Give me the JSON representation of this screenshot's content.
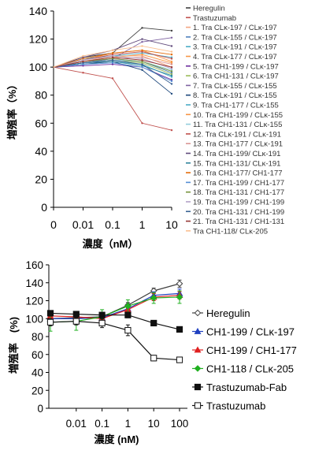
{
  "chart_data": [
    {
      "type": "line",
      "x_ticks": [
        "0",
        "0.01",
        "0.1",
        "1",
        "10"
      ],
      "x": [
        0,
        0.01,
        0.1,
        1,
        10
      ],
      "xlabel": "濃度（nM）",
      "ylabel": "増殖率（%）",
      "ylim": [
        0,
        140
      ],
      "y_ticks": [
        0,
        20,
        40,
        60,
        80,
        100,
        120,
        140
      ],
      "grid": false,
      "legend_position": "right",
      "series": [
        {
          "name": "Heregulin",
          "color": "#404040",
          "values": [
            100,
            107,
            110,
            128,
            126
          ]
        },
        {
          "name": "Trastuzumab",
          "color": "#c0504d",
          "values": [
            100,
            96,
            92,
            60,
            55
          ]
        },
        {
          "name": "1. Tra CLκ-197 / CLκ-197",
          "color": "#f4a582",
          "values": [
            100,
            104,
            108,
            108,
            100
          ]
        },
        {
          "name": "2. Tra CLκ-155 / CLκ-197",
          "color": "#4f81bd",
          "values": [
            100,
            103,
            106,
            104,
            96
          ]
        },
        {
          "name": "3. Tra CLκ-191 / CLκ-197",
          "color": "#4bacc6",
          "values": [
            100,
            102,
            104,
            102,
            93
          ]
        },
        {
          "name": "4. Tra CLκ-177 / CLκ-197",
          "color": "#f79646",
          "values": [
            100,
            105,
            110,
            112,
            104
          ]
        },
        {
          "name": "5. Tra CH1-199 / CLκ-197",
          "color": "#7030a0",
          "values": [
            100,
            101,
            102,
            100,
            91
          ]
        },
        {
          "name": "6. Tra CH1-131 / CLκ-197",
          "color": "#9bbb59",
          "values": [
            100,
            103,
            105,
            103,
            95
          ]
        },
        {
          "name": "7. Tra CLκ-155 / CLκ-155",
          "color": "#8064a2",
          "values": [
            100,
            104,
            106,
            118,
            121
          ]
        },
        {
          "name": "8. Tra CLκ-191 / CLκ-155",
          "color": "#1f497d",
          "values": [
            100,
            102,
            104,
            98,
            81
          ]
        },
        {
          "name": "9. Tra CH1-177 / CLκ-155",
          "color": "#4bacc6",
          "values": [
            100,
            106,
            108,
            110,
            107
          ]
        },
        {
          "name": "10. Tra CH1-199 / CLκ-155",
          "color": "#f79646",
          "values": [
            100,
            104,
            107,
            109,
            103
          ]
        },
        {
          "name": "11. Tra CH1-131 / CLκ-155",
          "color": "#92cddc",
          "values": [
            100,
            103,
            105,
            104,
            98
          ]
        },
        {
          "name": "12. Tra CLκ-191 / CLκ-191",
          "color": "#c0504d",
          "values": [
            100,
            105,
            109,
            111,
            106
          ]
        },
        {
          "name": "13. Tra CH1-177 / CLκ-191",
          "color": "#d99694",
          "values": [
            100,
            104,
            106,
            107,
            102
          ]
        },
        {
          "name": "14. Tra CH1-199/ CLκ-191",
          "color": "#604a7b",
          "values": [
            100,
            107,
            112,
            120,
            115
          ]
        },
        {
          "name": "15. Tra CH1-131/ CLκ-191",
          "color": "#31859c",
          "values": [
            100,
            103,
            104,
            101,
            94
          ]
        },
        {
          "name": "16. Tra CH1-177/ CH1-177",
          "color": "#e46c0a",
          "values": [
            100,
            106,
            110,
            112,
            109
          ]
        },
        {
          "name": "17. Tra CH1-199 / CH1-177",
          "color": "#558ed5",
          "values": [
            100,
            102,
            103,
            100,
            90
          ]
        },
        {
          "name": "18. Tra CH1-131 / CH1-177",
          "color": "#77933c",
          "values": [
            100,
            104,
            106,
            104,
            97
          ]
        },
        {
          "name": "19. Tra CH1-199 / CH1-199",
          "color": "#b3a2c7",
          "values": [
            100,
            105,
            108,
            106,
            99
          ]
        },
        {
          "name": "20. Tra CH1-131 / CH1-199",
          "color": "#376092",
          "values": [
            100,
            103,
            105,
            102,
            88
          ]
        },
        {
          "name": "21. Tra CH1-131 / CH1-131",
          "color": "#953735",
          "values": [
            100,
            104,
            107,
            105,
            100
          ]
        },
        {
          "name": "Tra CH1-118/ CLκ-205",
          "color": "#fac090",
          "values": [
            100,
            108,
            112,
            115,
            111
          ]
        }
      ]
    },
    {
      "type": "line",
      "x_ticks": [
        "0.01",
        "0.1",
        "1",
        "10",
        "100"
      ],
      "x": [
        0.001,
        0.01,
        0.1,
        1,
        10,
        100
      ],
      "xlabel": "濃度 (nM)",
      "ylabel": "増殖率　(%)",
      "ylim": [
        0,
        160
      ],
      "y_ticks": [
        0,
        20,
        40,
        60,
        80,
        100,
        120,
        140,
        160
      ],
      "x_scale": "log",
      "grid": false,
      "legend_position": "right",
      "series": [
        {
          "name": "Heregulin",
          "color": "#404040",
          "marker": "diamond-open",
          "values": [
            100,
            101,
            102,
            115,
            131,
            139
          ],
          "errors": [
            3,
            3,
            3,
            3,
            3,
            4
          ]
        },
        {
          "name": "CH1-199 / CLκ-197",
          "color": "#2040c0",
          "marker": "triangle",
          "values": [
            100,
            100,
            101,
            111,
            126,
            128
          ],
          "errors": [
            3,
            3,
            3,
            4,
            4,
            5
          ]
        },
        {
          "name": "CH1-199 / CH1-177",
          "color": "#e02020",
          "marker": "triangle",
          "values": [
            103,
            102,
            100,
            110,
            124,
            126
          ],
          "errors": [
            3,
            3,
            3,
            4,
            4,
            4
          ]
        },
        {
          "name": "CH1-118 / CLκ-205",
          "color": "#20b020",
          "marker": "diamond",
          "values": [
            96,
            97,
            102,
            114,
            123,
            124
          ],
          "errors": [
            10,
            10,
            8,
            7,
            6,
            7
          ]
        },
        {
          "name": "Trastuzumab-Fab",
          "color": "#101010",
          "marker": "square",
          "values": [
            106,
            105,
            104,
            104,
            95,
            88
          ],
          "errors": [
            3,
            3,
            3,
            3,
            3,
            3
          ]
        },
        {
          "name": "Trastuzumab",
          "color": "#101010",
          "marker": "square-open",
          "values": [
            96,
            97,
            95,
            87,
            56,
            54
          ],
          "errors": [
            4,
            4,
            5,
            6,
            3,
            2
          ]
        }
      ]
    }
  ]
}
